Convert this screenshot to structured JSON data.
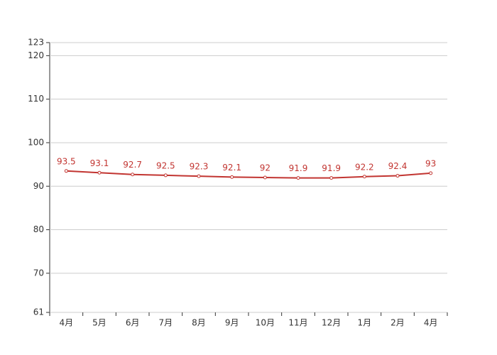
{
  "chart_data": {
    "type": "line",
    "categories": [
      "4月",
      "5月",
      "6月",
      "7月",
      "8月",
      "9月",
      "10月",
      "11月",
      "12月",
      "1月",
      "2月",
      "4月"
    ],
    "values": [
      93.5,
      93.1,
      92.7,
      92.5,
      92.3,
      92.1,
      92,
      91.9,
      91.9,
      92.2,
      92.4,
      93
    ],
    "color": "#c23531",
    "ylim": [
      61,
      123
    ],
    "yticks": [
      61,
      70,
      80,
      90,
      100,
      110,
      120,
      123
    ],
    "grid": true
  }
}
